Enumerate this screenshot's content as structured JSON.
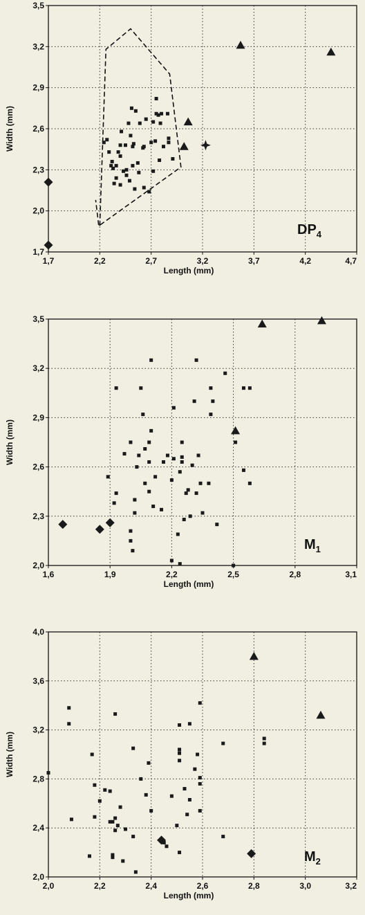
{
  "chart_data": [
    {
      "type": "scatter",
      "panel_label": "DP",
      "panel_label_sub": "4",
      "xlabel": "Length (mm)",
      "ylabel": "Width (mm)",
      "xlim": [
        1.7,
        4.7
      ],
      "ylim": [
        1.7,
        3.5
      ],
      "x_ticks": [
        "1,7",
        "2,2",
        "2,7",
        "3,2",
        "3,7",
        "4,2",
        "4,7"
      ],
      "y_ticks": [
        "1,7",
        "2,0",
        "2,3",
        "2,6",
        "2,9",
        "3,2",
        "3,5"
      ],
      "grid": true,
      "series": [
        {
          "marker": "square",
          "x": [
            2.24,
            2.38,
            2.41,
            2.48,
            2.51,
            2.55,
            2.62,
            2.7,
            2.72,
            2.75,
            2.77,
            2.8,
            2.86,
            2.87,
            2.91,
            2.5,
            2.53,
            2.45,
            2.4,
            2.29,
            2.32,
            2.36,
            2.43,
            2.49,
            2.54,
            2.58,
            2.63,
            2.72,
            2.78,
            2.82,
            2.87,
            2.33,
            2.36,
            2.4,
            2.46,
            2.52,
            2.57,
            2.63,
            2.68,
            2.74,
            2.79,
            2.27,
            2.31,
            2.34,
            2.4,
            2.46,
            2.52,
            2.59,
            2.65,
            2.75
          ],
          "y": [
            2.5,
            2.43,
            2.58,
            2.64,
            2.75,
            2.73,
            2.46,
            2.5,
            2.65,
            2.71,
            2.7,
            2.71,
            2.71,
            2.53,
            2.38,
            2.55,
            2.49,
            2.48,
            2.48,
            2.43,
            2.36,
            2.33,
            2.29,
            2.22,
            2.16,
            2.28,
            2.47,
            2.29,
            2.37,
            2.47,
            2.5,
            2.31,
            2.24,
            2.4,
            2.3,
            2.33,
            2.35,
            2.17,
            2.14,
            2.51,
            2.64,
            2.52,
            2.33,
            2.2,
            2.19,
            2.26,
            2.47,
            2.64,
            2.67,
            2.82
          ]
        },
        {
          "marker": "triangle",
          "x": [
            3.57,
            4.45,
            3.06,
            3.02
          ],
          "y": [
            3.21,
            3.16,
            2.65,
            2.47
          ]
        },
        {
          "marker": "diamond",
          "x": [
            1.7,
            1.7
          ],
          "y": [
            2.21,
            1.75
          ]
        },
        {
          "marker": "star",
          "x": [
            3.23
          ],
          "y": [
            2.48
          ]
        }
      ],
      "hull": {
        "x": [
          2.2,
          2.26,
          2.5,
          2.88,
          2.99,
          2.19,
          2.16
        ],
        "y": [
          1.89,
          3.18,
          3.33,
          3.0,
          2.32,
          1.89,
          2.08
        ]
      }
    },
    {
      "type": "scatter",
      "panel_label": "M",
      "panel_label_sub": "1",
      "xlabel": "Length (mm)",
      "ylabel": "Width (mm)",
      "xlim": [
        1.6,
        3.1
      ],
      "ylim": [
        2.0,
        3.5
      ],
      "x_ticks": [
        "1,6",
        "1,9",
        "2,2",
        "2,5",
        "2,8",
        "3,1"
      ],
      "y_ticks": [
        "2,0",
        "2,3",
        "2,6",
        "2,9",
        "3,2",
        "3,5"
      ],
      "grid": true,
      "series": [
        {
          "marker": "square",
          "x": [
            1.89,
            1.92,
            1.93,
            1.97,
            2.0,
            2.0,
            2.01,
            2.02,
            2.04,
            2.05,
            2.06,
            2.07,
            2.09,
            2.09,
            2.1,
            2.1,
            2.12,
            2.15,
            2.16,
            2.18,
            2.2,
            2.21,
            2.21,
            2.23,
            2.24,
            2.24,
            2.25,
            2.25,
            2.26,
            2.27,
            2.28,
            2.29,
            2.31,
            2.32,
            2.33,
            2.34,
            2.35,
            2.38,
            2.39,
            2.39,
            2.4,
            2.42,
            2.46,
            2.5,
            2.51,
            2.55,
            2.55,
            2.58,
            2.58,
            1.93,
            2.0,
            2.02,
            2.03,
            2.07,
            2.09,
            2.11,
            2.2,
            2.25,
            2.3,
            2.32
          ],
          "y": [
            2.54,
            2.38,
            3.08,
            2.68,
            2.75,
            2.15,
            2.09,
            2.32,
            2.67,
            3.08,
            2.92,
            2.5,
            2.63,
            2.75,
            3.25,
            2.82,
            2.54,
            2.34,
            2.63,
            2.67,
            2.03,
            2.65,
            2.96,
            2.19,
            2.01,
            2.57,
            2.75,
            2.66,
            2.28,
            2.44,
            2.46,
            2.3,
            3.0,
            3.25,
            2.67,
            2.5,
            2.32,
            2.5,
            2.92,
            3.08,
            3.0,
            2.25,
            3.17,
            2.0,
            2.75,
            3.08,
            2.58,
            2.5,
            3.08,
            2.44,
            2.21,
            2.4,
            2.6,
            2.71,
            2.45,
            2.36,
            2.52,
            2.63,
            2.61,
            2.44
          ]
        },
        {
          "marker": "triangle",
          "x": [
            2.51,
            2.64,
            2.93
          ],
          "y": [
            2.82,
            3.47,
            3.49
          ]
        },
        {
          "marker": "diamond",
          "x": [
            1.67,
            1.85,
            1.9
          ],
          "y": [
            2.25,
            2.22,
            2.26
          ]
        }
      ]
    },
    {
      "type": "scatter",
      "panel_label": "M",
      "panel_label_sub": "2",
      "xlabel": "Length (mm)",
      "ylabel": "Width (mm)",
      "xlim": [
        2.0,
        3.2
      ],
      "ylim": [
        2.0,
        4.0
      ],
      "x_ticks": [
        "2,0",
        "2,2",
        "2,4",
        "2,6",
        "2,8",
        "3,0",
        "3,2"
      ],
      "y_ticks": [
        "2,0",
        "2,4",
        "2,8",
        "3,2",
        "3,6",
        "4,0"
      ],
      "grid": true,
      "series": [
        {
          "marker": "square",
          "x": [
            2.0,
            2.08,
            2.08,
            2.09,
            2.16,
            2.17,
            2.18,
            2.18,
            2.22,
            2.24,
            2.25,
            2.25,
            2.25,
            2.26,
            2.26,
            2.27,
            2.29,
            2.33,
            2.33,
            2.34,
            2.38,
            2.39,
            2.45,
            2.46,
            2.5,
            2.51,
            2.51,
            2.51,
            2.51,
            2.51,
            2.54,
            2.55,
            2.55,
            2.58,
            2.59,
            2.59,
            2.59,
            2.59,
            2.68,
            2.68,
            2.84,
            2.84,
            2.2,
            2.24,
            2.26,
            2.28,
            2.3,
            2.36,
            2.4,
            2.48,
            2.53,
            2.57
          ],
          "y": [
            2.85,
            3.38,
            3.25,
            2.47,
            2.17,
            3.0,
            2.75,
            2.49,
            2.71,
            2.45,
            2.16,
            2.45,
            2.18,
            3.33,
            2.38,
            2.42,
            2.13,
            3.05,
            2.33,
            2.04,
            2.67,
            2.93,
            2.28,
            2.25,
            2.42,
            2.2,
            3.01,
            2.95,
            3.24,
            3.04,
            2.51,
            3.25,
            2.63,
            3.0,
            2.76,
            2.81,
            3.42,
            2.54,
            3.09,
            2.33,
            3.09,
            3.13,
            2.62,
            2.7,
            2.48,
            2.57,
            2.39,
            2.8,
            2.54,
            2.66,
            2.72,
            2.88
          ]
        },
        {
          "marker": "triangle",
          "x": [
            2.8,
            3.06
          ],
          "y": [
            3.8,
            3.32
          ]
        },
        {
          "marker": "diamond",
          "x": [
            2.44,
            2.79
          ],
          "y": [
            2.3,
            2.19
          ]
        }
      ]
    }
  ]
}
